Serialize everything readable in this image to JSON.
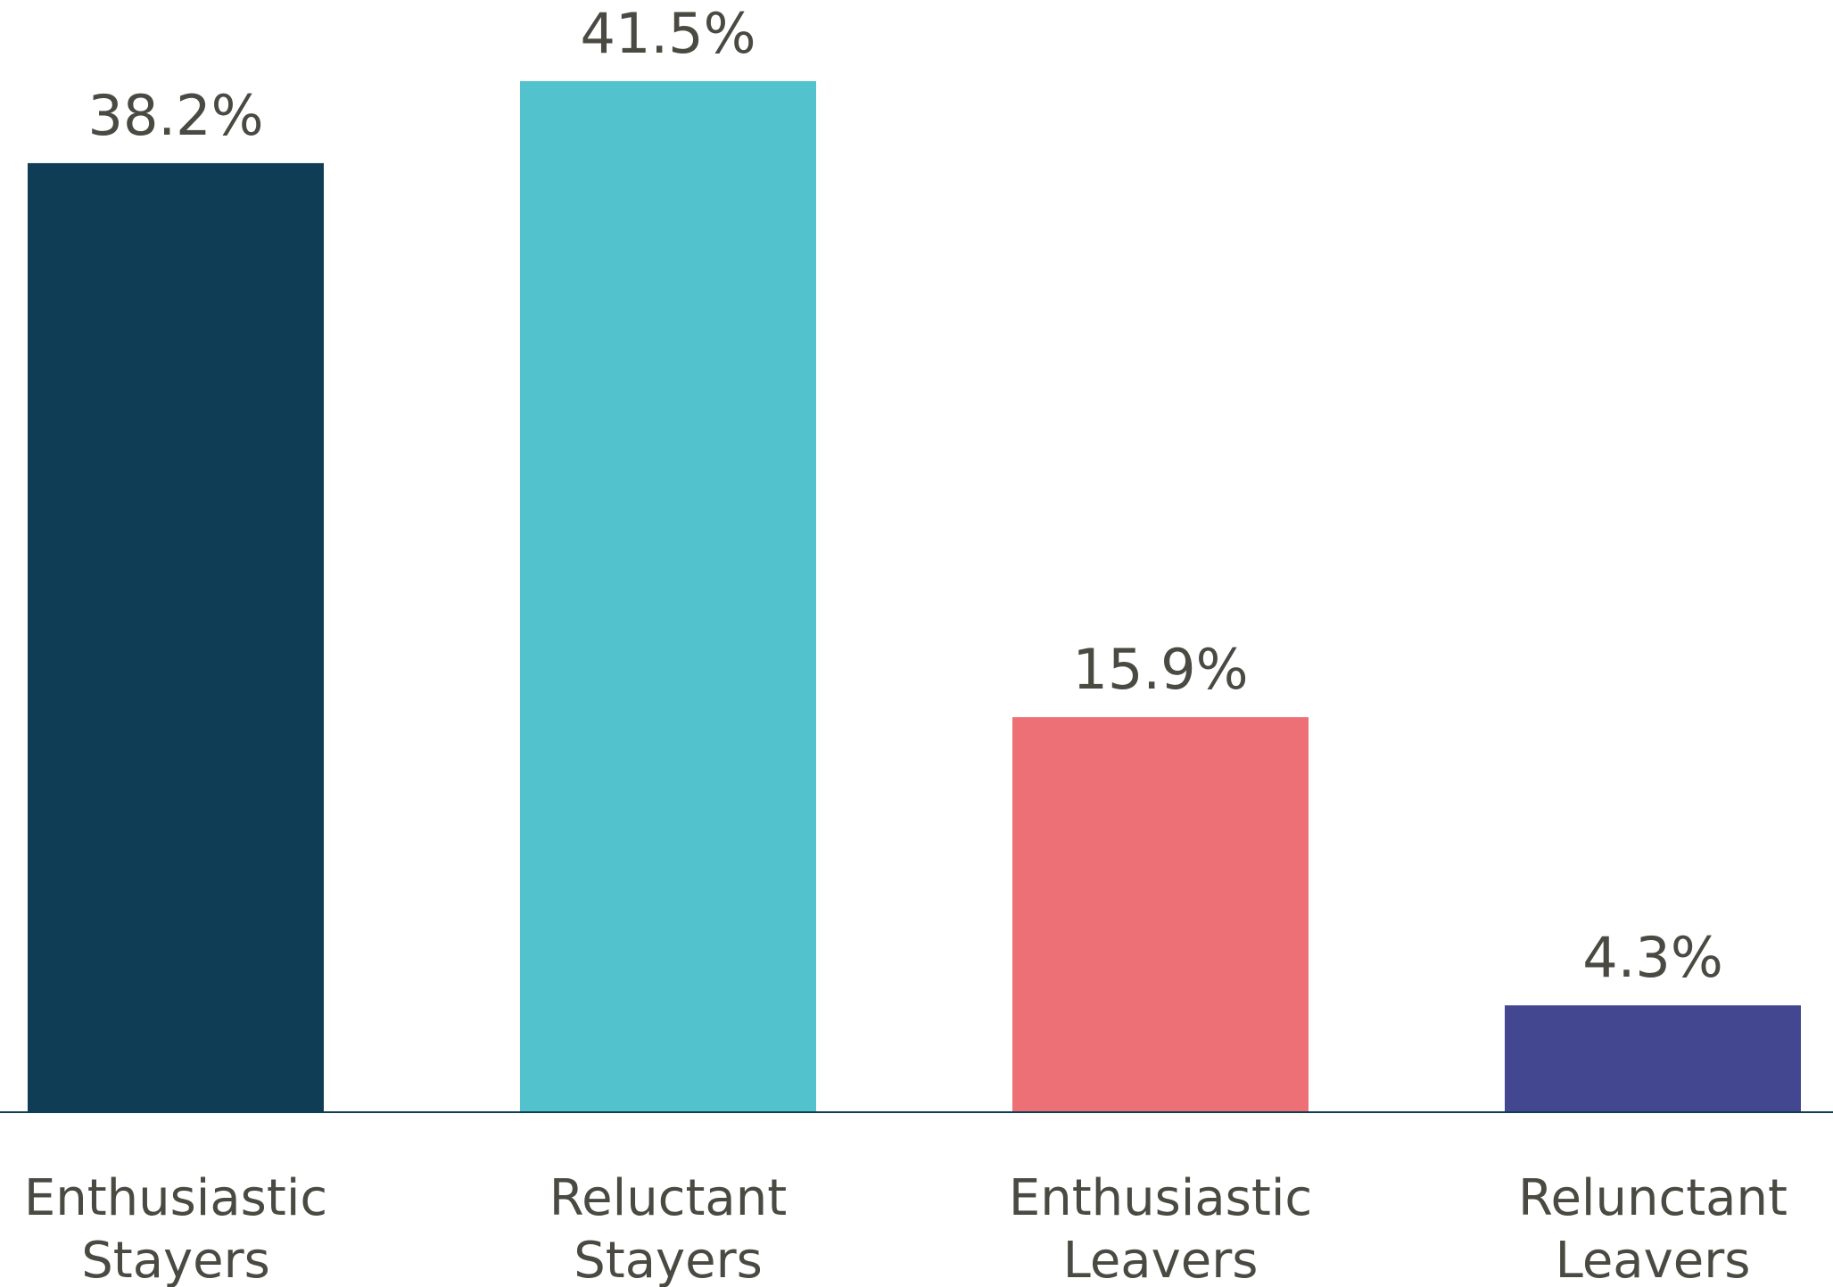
{
  "chart_data": {
    "type": "bar",
    "categories": [
      [
        "Enthusiastic",
        "Stayers"
      ],
      [
        "Reluctant",
        "Stayers"
      ],
      [
        "Enthusiastic",
        "Leavers"
      ],
      [
        "Relunctant",
        "Leavers"
      ]
    ],
    "values": [
      38.2,
      41.5,
      15.9,
      4.3
    ],
    "value_labels": [
      "38.2%",
      "41.5%",
      "15.9%",
      "4.3%"
    ],
    "colors": [
      "#0e3d55",
      "#52c3cc",
      "#ed7076",
      "#424790"
    ],
    "baseline_color": "#0e3d55",
    "title": "",
    "xlabel": "",
    "ylabel": "",
    "ylim": [
      0,
      41.5
    ],
    "grid": false,
    "legend": "none"
  }
}
